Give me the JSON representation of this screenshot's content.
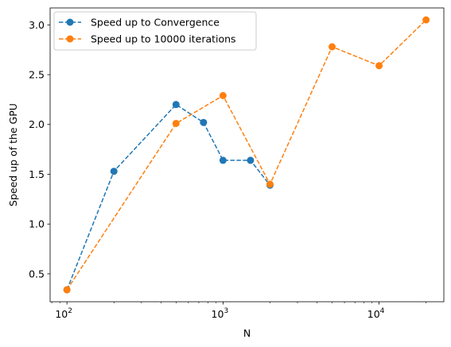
{
  "chart_data": {
    "type": "line",
    "title": "",
    "xlabel": "N",
    "ylabel": "Speed up of the GPU",
    "xscale": "log",
    "xlim": [
      78,
      26000
    ],
    "ylim": [
      0.22,
      3.17
    ],
    "grid": false,
    "legend_position": "top-left",
    "x_ticks": [
      {
        "value": 100,
        "base": "10",
        "exp": "2"
      },
      {
        "value": 1000,
        "base": "10",
        "exp": "3"
      },
      {
        "value": 10000,
        "base": "10",
        "exp": "4"
      }
    ],
    "y_ticks": [
      "0.5",
      "1.0",
      "1.5",
      "2.0",
      "2.5",
      "3.0"
    ],
    "series": [
      {
        "name": "Speed up to Convergence",
        "color": "#1f77b4",
        "x": [
          100,
          200,
          500,
          750,
          1000,
          1500,
          2000
        ],
        "y": [
          0.34,
          1.53,
          2.2,
          2.02,
          1.64,
          1.64,
          1.39
        ]
      },
      {
        "name": "Speed up to 10000 iterations",
        "color": "#ff7f0e",
        "x": [
          100,
          500,
          1000,
          2000,
          5000,
          10000,
          20000
        ],
        "y": [
          0.34,
          2.01,
          2.29,
          1.4,
          2.78,
          2.59,
          3.05
        ]
      }
    ]
  }
}
